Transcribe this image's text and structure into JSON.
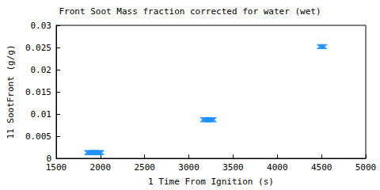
{
  "chart_data": {
    "type": "scatter",
    "title": "Front Soot Mass fraction corrected for water (wet)",
    "x_label": "1 Time From Ignition (s)",
    "y_label": "11 SootFront (g/g)",
    "x": [
      1850,
      1860,
      1870,
      1880,
      1890,
      1900,
      1910,
      1920,
      1930,
      1940,
      1950,
      1960,
      1970,
      1980,
      1990,
      2000,
      2010,
      3160,
      3170,
      3180,
      3190,
      3200,
      3210,
      3220,
      3230,
      3240,
      3250,
      3260,
      3270,
      3280,
      4480,
      4490,
      4500,
      4510,
      4520,
      4530
    ],
    "values": [
      0.0013,
      0.0013,
      0.0013,
      0.0013,
      0.0013,
      0.0013,
      0.0013,
      0.0013,
      0.0013,
      0.0013,
      0.0013,
      0.0013,
      0.0013,
      0.0013,
      0.0013,
      0.0013,
      0.0013,
      0.0087,
      0.0087,
      0.0087,
      0.0087,
      0.0087,
      0.0087,
      0.0087,
      0.0087,
      0.0087,
      0.0087,
      0.0087,
      0.0087,
      0.0087,
      0.0252,
      0.0252,
      0.0252,
      0.0252,
      0.0252,
      0.0252
    ],
    "color": "#1e90ff",
    "marker": "x",
    "xlim": [
      1500,
      5000
    ],
    "xticks": [
      1500,
      2000,
      2500,
      3000,
      3500,
      4000,
      4500,
      5000
    ],
    "ylim": [
      0,
      0.03
    ],
    "yticks": [
      0,
      0.005,
      0.01,
      0.015,
      0.02,
      0.025,
      0.03
    ],
    "grid": false
  }
}
